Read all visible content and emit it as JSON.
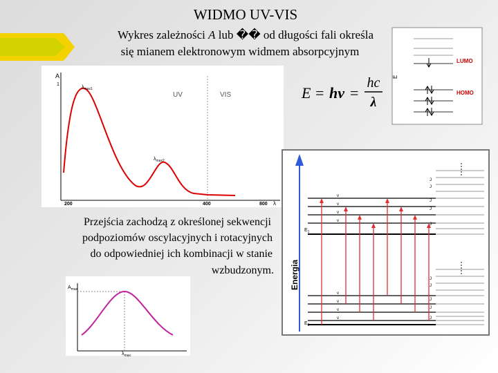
{
  "title": "WIDMO UV-VIS",
  "intro": {
    "line1": {
      "before": "Wykres zależności ",
      "symbol": "A",
      "mid": " lub ",
      "garbled": "��",
      "after": " od długości fali określa"
    },
    "line2": "się mianem elektronowym widmem absorpcyjnym"
  },
  "spectrum": {
    "y_axis": "A",
    "y_top": "1",
    "peak1": {
      "base": "λ",
      "sub": "max1"
    },
    "peak2": {
      "base": "λ",
      "sub": "max2"
    },
    "region_uv": "UV",
    "region_vis": "VIS",
    "x_ticks": [
      "200",
      "400",
      "800"
    ],
    "x_axis": "λ"
  },
  "formula": {
    "lhs": "E",
    "mid": "hν",
    "num": "hc",
    "den": "λ"
  },
  "orbitals": {
    "axis": "E",
    "lumo": "LUMO",
    "homo": "HOMO"
  },
  "transitions": [
    "Przejścia zachodzą z określonej sekwencji",
    "podpoziomów oscylacyjnych i rotacyjnych",
    "do odpowiedniej ich kombinacji w stanie",
    "wzbudzonym."
  ],
  "band": {
    "y_axis": "A",
    "y_sub": "max",
    "x_axis": "λ",
    "x_sub": "max"
  },
  "levels": {
    "axis": "Energia",
    "upper": {
      "base": "E",
      "sub": "1"
    },
    "lower": {
      "base": "E",
      "sub": "0"
    },
    "vib_upper": [
      "v",
      "v",
      "v",
      "v"
    ],
    "rot_upper": [
      "J",
      "J",
      "J",
      "J",
      "J"
    ],
    "vib_lower": [
      "v",
      "v",
      "v",
      "v"
    ],
    "rot_lower": [
      "J",
      "J",
      "J",
      "J",
      "J"
    ]
  }
}
